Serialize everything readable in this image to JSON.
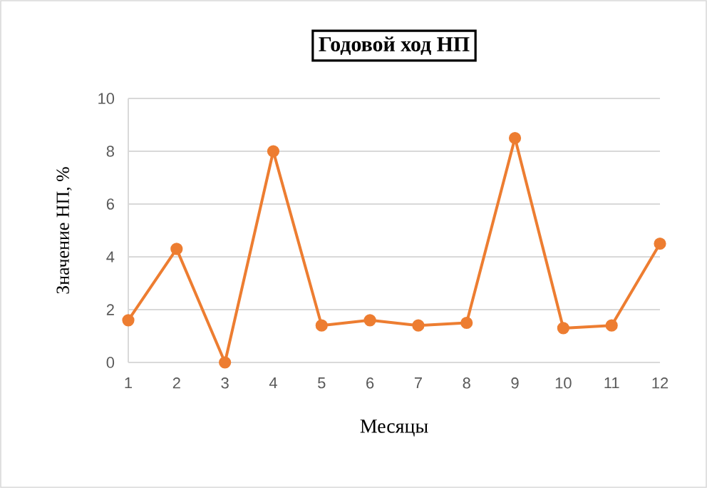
{
  "chart_data": {
    "type": "line",
    "title": "Годовой ход НП",
    "xlabel": "Месяцы",
    "ylabel": "Значение НП, %",
    "categories": [
      "1",
      "2",
      "3",
      "4",
      "5",
      "6",
      "7",
      "8",
      "9",
      "10",
      "11",
      "12"
    ],
    "values": [
      1.6,
      4.3,
      0,
      8,
      1.4,
      1.6,
      1.4,
      1.5,
      8.5,
      1.3,
      1.4,
      4.5
    ],
    "color": "#ed7d31",
    "ylim": [
      0,
      10
    ],
    "yticks": [
      0,
      2,
      4,
      6,
      8,
      10
    ],
    "grid": "y",
    "marker": "circle",
    "line_style": "solid",
    "legend": false
  }
}
